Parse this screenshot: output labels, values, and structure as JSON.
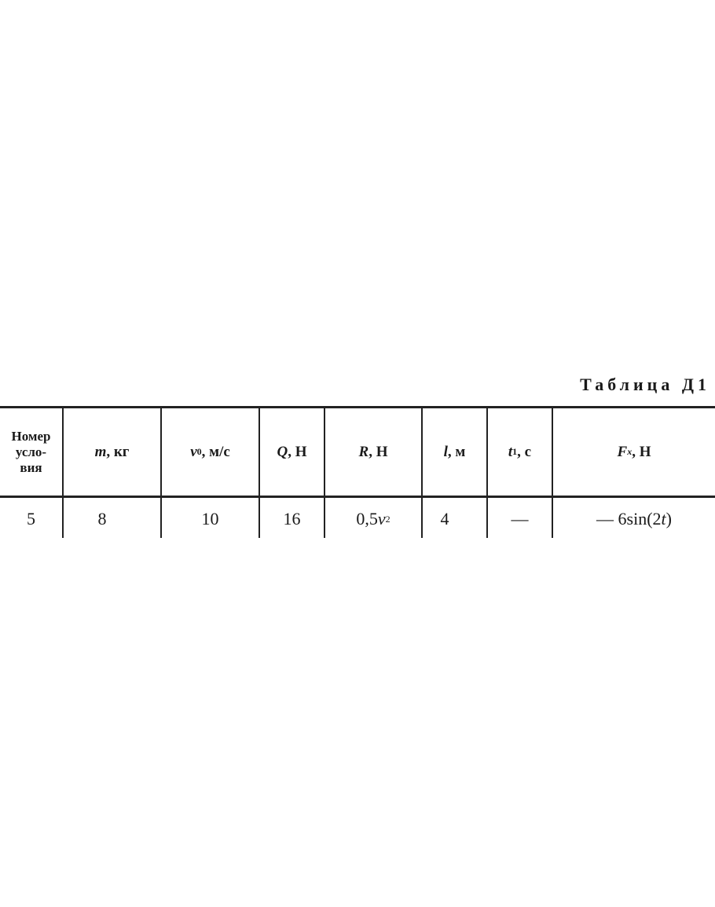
{
  "title": "Таблица Д1",
  "table": {
    "headers": [
      "Номер усло- вия",
      "m, кг",
      "v0, м/с",
      "Q, Н",
      "R, Н",
      "l, м",
      "t1, с",
      "Fx, Н"
    ],
    "header_parts": {
      "col0": [
        "Номер",
        "усло-",
        "вия"
      ],
      "m": {
        "var": "m",
        "unit": ", кг"
      },
      "v0": {
        "var": "v",
        "sub": "0",
        "unit": ", м/с"
      },
      "Q": {
        "var": "Q",
        "unit": ", Н"
      },
      "R": {
        "var": "R",
        "unit": ", Н"
      },
      "l": {
        "var": "l",
        "unit": ", м"
      },
      "t1": {
        "var": "t",
        "sub": "1",
        "unit": ", с"
      },
      "Fx": {
        "var": "F",
        "sub": "x",
        "unit": ", Н"
      }
    },
    "rows": [
      {
        "number": "5",
        "m": "8",
        "v0": "10",
        "Q": "16",
        "R_coef": "0,5",
        "R_var": "v",
        "R_exp": "2",
        "l": "4",
        "t1": "—",
        "Fx_prefix": "— 6sin(2",
        "Fx_var": "t",
        "Fx_suffix": ")"
      }
    ]
  }
}
